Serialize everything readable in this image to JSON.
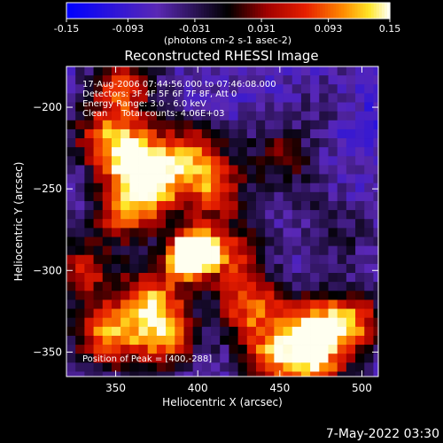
{
  "chart_data": {
    "type": "heatmap",
    "title": "Reconstructed RHESSI Image",
    "xlabel": "Heliocentric X (arcsec)",
    "ylabel": "Heliocentric Y (arcsec)",
    "xlim": [
      320,
      510
    ],
    "ylim": [
      -365,
      -175
    ],
    "x_ticks": [
      350,
      400,
      450,
      500
    ],
    "y_ticks": [
      -200,
      -250,
      -300,
      -350
    ],
    "colorbar": {
      "min": -0.15,
      "max": 0.15,
      "ticks": [
        "-0.15",
        "-0.093",
        "-0.031",
        "0.031",
        "0.093",
        "0.15"
      ],
      "unit_label": "(photons cm-2 s-1 asec-2)"
    },
    "annotations": [
      "17-Aug-2006 07:44:56.000 to 07:46:08.000",
      "Detectors: 3F 4F 5F 6F 7F 8F, Att 0",
      "Energy Range: 3.0 - 6.0 keV",
      "Clean     Total counts: 4.06E+03"
    ],
    "peak_label": "Position of Peak = [400,-288]",
    "peak": {
      "x": 400,
      "y": -288,
      "value": 0.15
    },
    "hot_spots": [
      {
        "x": 400,
        "y": -288,
        "value": 0.15
      },
      {
        "x": 392,
        "y": -292,
        "value": 0.13
      },
      {
        "x": 372,
        "y": -318,
        "value": 0.1
      },
      {
        "x": 372,
        "y": -248,
        "value": 0.1
      },
      {
        "x": 362,
        "y": -230,
        "value": 0.07
      },
      {
        "x": 395,
        "y": -228,
        "value": 0.06
      },
      {
        "x": 410,
        "y": -250,
        "value": 0.07
      },
      {
        "x": 345,
        "y": -220,
        "value": 0.06
      },
      {
        "x": 355,
        "y": -265,
        "value": 0.06
      },
      {
        "x": 345,
        "y": -340,
        "value": 0.1
      },
      {
        "x": 380,
        "y": -342,
        "value": 0.08
      },
      {
        "x": 432,
        "y": -322,
        "value": 0.08
      },
      {
        "x": 470,
        "y": -335,
        "value": 0.09
      },
      {
        "x": 495,
        "y": -332,
        "value": 0.08
      },
      {
        "x": 445,
        "y": -352,
        "value": 0.07
      },
      {
        "x": 470,
        "y": -358,
        "value": 0.08
      },
      {
        "x": 355,
        "y": -187,
        "value": 0.07
      },
      {
        "x": 330,
        "y": -300,
        "value": 0.05
      },
      {
        "x": 420,
        "y": -290,
        "value": 0.06
      },
      {
        "x": 450,
        "y": -230,
        "value": 0.02
      },
      {
        "x": 480,
        "y": -200,
        "value": -0.04
      },
      {
        "x": 500,
        "y": -210,
        "value": -0.1
      },
      {
        "x": 470,
        "y": -260,
        "value": -0.04
      },
      {
        "x": 330,
        "y": -205,
        "value": -0.05
      },
      {
        "x": 490,
        "y": -280,
        "value": -0.03
      }
    ]
  },
  "footer": {
    "date": "7-May-2022 03:30"
  }
}
